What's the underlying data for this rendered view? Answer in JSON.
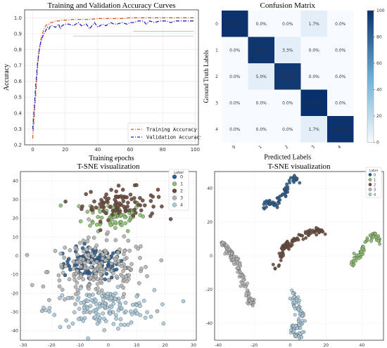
{
  "chart_data": [
    {
      "type": "line",
      "title": "Training and Validation Accuracy Curves",
      "xlabel": "Training epochs",
      "ylabel": "Accuracy",
      "xlim": [
        -5,
        102
      ],
      "ylim": [
        0.2,
        1.05
      ],
      "xticks": [
        "0",
        "20",
        "40",
        "60",
        "80",
        "100"
      ],
      "yticks": [
        "0.2",
        "0.3",
        "0.4",
        "0.5",
        "0.6",
        "0.7",
        "0.8",
        "0.9",
        "1.0"
      ],
      "legend_position": "bottom-right",
      "grid": true,
      "series": [
        {
          "name": "Training Accuracy",
          "color": "#d9541e",
          "style": "dashdot",
          "x": [
            0,
            1,
            2,
            3,
            4,
            5,
            6,
            7,
            8,
            9,
            10,
            11,
            12,
            14,
            16,
            18,
            20,
            25,
            30,
            35,
            40,
            45,
            50,
            55,
            60,
            65,
            70,
            75,
            80,
            85,
            90,
            95,
            99
          ],
          "y": [
            0.24,
            0.4,
            0.55,
            0.7,
            0.8,
            0.86,
            0.9,
            0.93,
            0.95,
            0.96,
            0.96,
            0.97,
            0.97,
            0.98,
            0.98,
            0.985,
            0.985,
            0.99,
            0.99,
            0.99,
            0.995,
            0.995,
            0.995,
            0.995,
            1.0,
            1.0,
            1.0,
            1.0,
            1.0,
            1.0,
            1.0,
            1.0,
            1.0
          ]
        },
        {
          "name": "Validation Accuracy",
          "color": "#2222cc",
          "style": "dashdot",
          "x": [
            0,
            1,
            2,
            3,
            4,
            5,
            6,
            7,
            8,
            9,
            10,
            11,
            12,
            14,
            16,
            17,
            18,
            20,
            22,
            25,
            28,
            30,
            33,
            35,
            38,
            40,
            43,
            45,
            48,
            50,
            52,
            55,
            58,
            60,
            62,
            65,
            68,
            70,
            72,
            75,
            78,
            80,
            82,
            85,
            88,
            90,
            92,
            95,
            97,
            99
          ],
          "y": [
            0.3,
            0.45,
            0.6,
            0.72,
            0.8,
            0.85,
            0.88,
            0.9,
            0.92,
            0.94,
            0.93,
            0.95,
            0.95,
            0.94,
            0.96,
            0.93,
            0.95,
            0.96,
            0.96,
            0.95,
            0.97,
            0.95,
            0.96,
            0.93,
            0.97,
            0.94,
            0.96,
            0.95,
            0.97,
            0.96,
            0.96,
            0.97,
            0.96,
            0.97,
            0.97,
            0.98,
            0.98,
            0.96,
            0.98,
            0.97,
            0.98,
            0.98,
            0.98,
            0.97,
            0.98,
            0.98,
            0.98,
            0.98,
            0.98,
            0.98
          ]
        }
      ],
      "extra_lines": [
        {
          "color": "#c8c8f0",
          "x": [
            25,
            99
          ],
          "y": [
            0.885,
            0.885
          ]
        },
        {
          "color": "#e8b0b0",
          "x": [
            62,
            99
          ],
          "y": [
            0.915,
            0.915
          ]
        }
      ]
    },
    {
      "type": "heatmap",
      "title": "Confusion Matrix",
      "xlabel": "Predicted Labels",
      "ylabel": "Ground Truth Labels",
      "rows": [
        "0",
        "1",
        "2",
        "3",
        "4"
      ],
      "cols": [
        "0",
        "1",
        "2",
        "3",
        "4"
      ],
      "values": [
        [
          98.3,
          0.0,
          0.0,
          1.7,
          0.0
        ],
        [
          0.0,
          96.7,
          3.3,
          0.0,
          0.0
        ],
        [
          0.0,
          5.0,
          95.0,
          0.0,
          0.0
        ],
        [
          0.0,
          0.0,
          0.0,
          100.0,
          0.0
        ],
        [
          0.0,
          0.0,
          0.0,
          1.7,
          98.3
        ]
      ],
      "cell_labels": [
        [
          "98.3%",
          "0.0%",
          "0.0%",
          "1.7%",
          "0.0%"
        ],
        [
          "0.0%",
          "96.7%",
          "3.3%",
          "0.0%",
          "0.0%"
        ],
        [
          "0.0%",
          "5.0%",
          "95.0%",
          "0.0%",
          "0.0%"
        ],
        [
          "0.0%",
          "0.0%",
          "0.0%",
          "100.0%",
          "0.0%"
        ],
        [
          "0.0%",
          "0.0%",
          "0.0%",
          "1.7%",
          "98.3%"
        ]
      ],
      "colorbar": {
        "min": 0,
        "max": 100,
        "ticks": [
          "100",
          "80",
          "60",
          "40",
          "20",
          "0"
        ],
        "low_color": "#f7fbff",
        "high_color": "#08306b"
      }
    },
    {
      "type": "scatter",
      "title": "T-SNE visualization",
      "xlim": [
        -31,
        31
      ],
      "ylim": [
        -45,
        45
      ],
      "xticks": [
        "-30",
        "-20",
        "-10",
        "0",
        "10",
        "20",
        "30"
      ],
      "yticks": [
        "40",
        "30",
        "20",
        "10",
        "0",
        "-10",
        "-20",
        "-30",
        "-40"
      ],
      "legend_title": "Label",
      "legend_position": "top-right",
      "grid": true,
      "classes": [
        {
          "name": "0",
          "color": "#2b5d8c",
          "center": [
            -5,
            -4
          ],
          "spread": [
            9,
            7
          ],
          "n": 110
        },
        {
          "name": "1",
          "color": "#8cbf6e",
          "center": [
            2,
            22
          ],
          "spread": [
            9,
            7
          ],
          "n": 75
        },
        {
          "name": "2",
          "color": "#6b4a3c",
          "center": [
            4,
            28
          ],
          "spread": [
            11,
            7
          ],
          "n": 90
        },
        {
          "name": "3",
          "color": "#b5b5b5",
          "center": [
            -3,
            -8
          ],
          "spread": [
            15,
            14
          ],
          "n": 200
        },
        {
          "name": "4",
          "color": "#a8cadb",
          "center": [
            -2,
            -28
          ],
          "spread": [
            15,
            8
          ],
          "n": 140
        }
      ]
    },
    {
      "type": "scatter",
      "title": "T-SNE visualization",
      "xlim": [
        -42,
        52
      ],
      "ylim": [
        -50,
        50
      ],
      "xticks": [
        "-40",
        "-20",
        "0",
        "20",
        "40"
      ],
      "yticks": [
        "40",
        "20",
        "0",
        "-20",
        "-40"
      ],
      "legend_title": "Label",
      "legend_position": "top-right",
      "grid": true,
      "classes": [
        {
          "name": "0",
          "color": "#2b5d8c",
          "path": [
            [
              -15,
              28
            ],
            [
              -12,
              33
            ],
            [
              -10,
              31
            ],
            [
              -8,
              30
            ],
            [
              -6,
              34
            ],
            [
              -4,
              36
            ],
            [
              -2,
              40
            ],
            [
              0,
              44
            ],
            [
              2,
              46
            ],
            [
              4,
              45
            ]
          ],
          "n": 70
        },
        {
          "name": "1",
          "color": "#8cbf6e",
          "path": [
            [
              34,
              -8
            ],
            [
              35,
              -4
            ],
            [
              36,
              -1
            ],
            [
              38,
              0
            ],
            [
              40,
              3
            ],
            [
              42,
              6
            ],
            [
              44,
              10
            ],
            [
              46,
              12
            ],
            [
              48,
              11
            ],
            [
              49,
              9
            ]
          ],
          "n": 60
        },
        {
          "name": "2",
          "color": "#6b4a3c",
          "path": [
            [
              -8,
              -8
            ],
            [
              -6,
              -2
            ],
            [
              -4,
              4
            ],
            [
              -2,
              6
            ],
            [
              0,
              8
            ],
            [
              4,
              10
            ],
            [
              8,
              12
            ],
            [
              10,
              14
            ],
            [
              14,
              15
            ],
            [
              18,
              14
            ]
          ],
          "n": 90
        },
        {
          "name": "3",
          "color": "#b5b5b5",
          "path": [
            [
              -38,
              8
            ],
            [
              -36,
              6
            ],
            [
              -34,
              2
            ],
            [
              -32,
              0
            ],
            [
              -30,
              -4
            ],
            [
              -28,
              -10
            ],
            [
              -26,
              -15
            ],
            [
              -24,
              -22
            ],
            [
              -22,
              -26
            ],
            [
              -20,
              -28
            ]
          ],
          "n": 120
        },
        {
          "name": "4",
          "color": "#a8cadb",
          "path": [
            [
              2,
              -22
            ],
            [
              4,
              -26
            ],
            [
              3,
              -30
            ],
            [
              5,
              -34
            ],
            [
              7,
              -35
            ],
            [
              6,
              -40
            ],
            [
              2,
              -42
            ],
            [
              1,
              -45
            ],
            [
              4,
              -47
            ],
            [
              8,
              -46
            ]
          ],
          "n": 100
        }
      ]
    }
  ]
}
